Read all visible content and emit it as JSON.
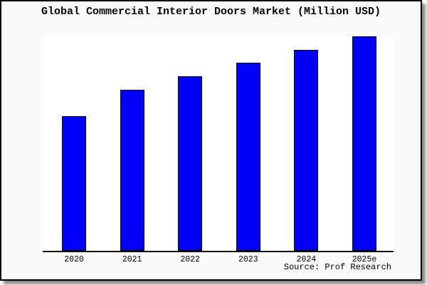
{
  "chart_data": {
    "type": "bar",
    "title": "Global Commercial Interior Doors Market (Million USD)",
    "categories": [
      "2020",
      "2021",
      "2022",
      "2023",
      "2024",
      "2025e"
    ],
    "values": [
      189,
      226,
      245,
      264,
      282,
      301
    ],
    "values_unit": "relative height (no y-axis scale shown in image)",
    "xlabel": "",
    "ylabel": "",
    "ylim": [
      0,
      303
    ],
    "gridlines": false,
    "y_axis_visible": false,
    "legend": false,
    "bar_color": "#0202fa",
    "bar_edge_color": "#000000",
    "source": "Source: Prof Research"
  },
  "colors": {
    "card_background": "#fafafa",
    "plot_background": "#ffffff",
    "axis": "#000000",
    "text": "#000000"
  }
}
